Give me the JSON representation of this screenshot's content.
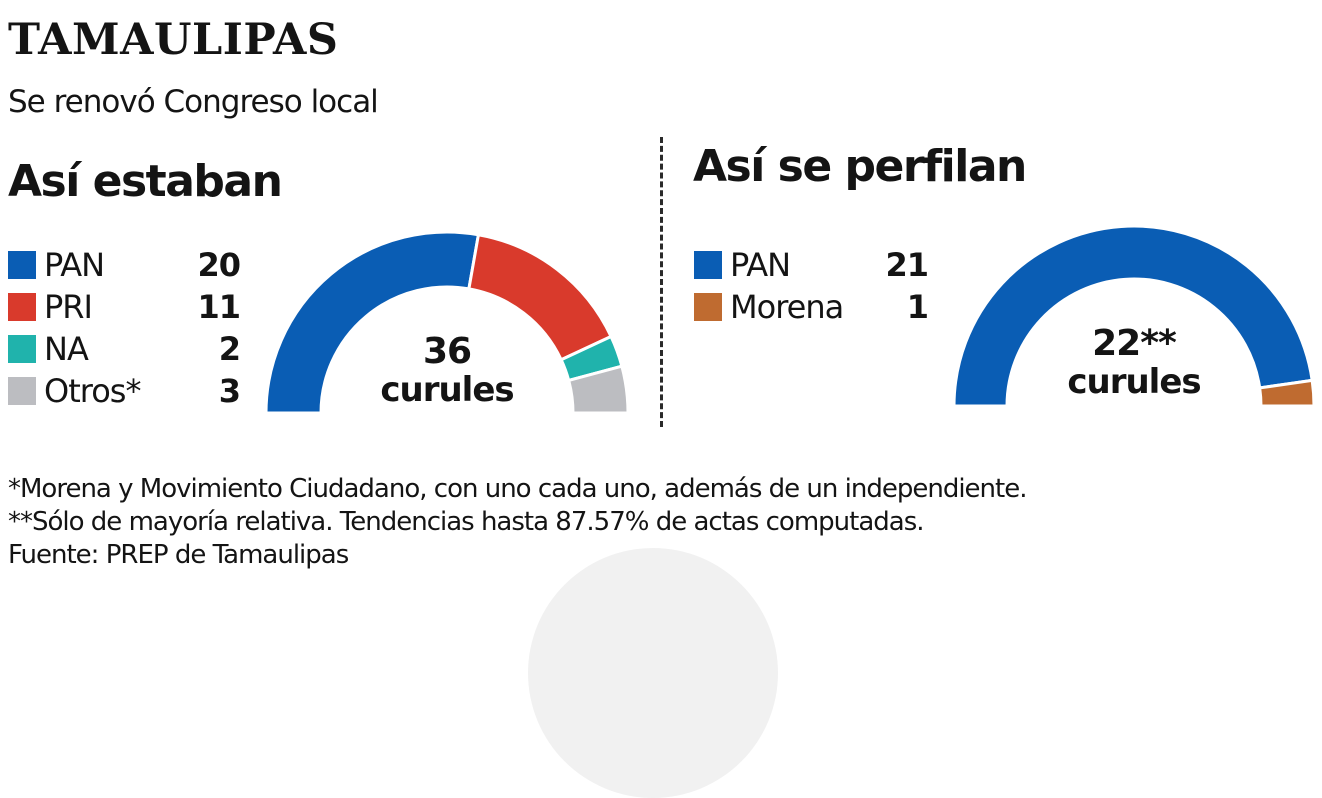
{
  "header": {
    "title": "TAMAULIPAS",
    "subtitle": "Se renovó Congreso local"
  },
  "colors": {
    "PAN": "#0a5db4",
    "PRI": "#d93a2c",
    "NA": "#20b3ac",
    "Otros": "#bcbdc1",
    "Morena": "#bf6b30"
  },
  "before": {
    "heading": "Así estaban",
    "legend": [
      {
        "label": "PAN",
        "value": "20"
      },
      {
        "label": "PRI",
        "value": "11"
      },
      {
        "label": "NA",
        "value": "2"
      },
      {
        "label": "Otros*",
        "value": "3"
      }
    ],
    "center_total": "36",
    "center_unit": "curules"
  },
  "after": {
    "heading": "Así se perfilan",
    "legend": [
      {
        "label": "PAN",
        "value": "21"
      },
      {
        "label": "Morena",
        "value": "1"
      }
    ],
    "center_total": "22**",
    "center_unit": "curules"
  },
  "notes": {
    "note1": "*Morena y Movimiento Ciudadano, con uno cada uno, además de un independiente.",
    "note2": "**Sólo de mayoría relativa. Tendencias hasta 87.57% de actas computadas.",
    "source": "Fuente: PREP de Tamaulipas"
  },
  "chart_data": [
    {
      "type": "pie",
      "subtype": "semicircle-donut",
      "title": "Así estaban",
      "categories": [
        "PAN",
        "PRI",
        "NA",
        "Otros*"
      ],
      "values": [
        20,
        11,
        2,
        3
      ],
      "colors": [
        "#0a5db4",
        "#d93a2c",
        "#20b3ac",
        "#bcbdc1"
      ],
      "total": 36,
      "center_label": "36 curules",
      "legend_position": "left"
    },
    {
      "type": "pie",
      "subtype": "semicircle-donut",
      "title": "Así se perfilan",
      "categories": [
        "PAN",
        "Morena"
      ],
      "values": [
        21,
        1
      ],
      "colors": [
        "#0a5db4",
        "#bf6b30"
      ],
      "total": 22,
      "center_label": "22** curules",
      "legend_position": "left"
    }
  ]
}
